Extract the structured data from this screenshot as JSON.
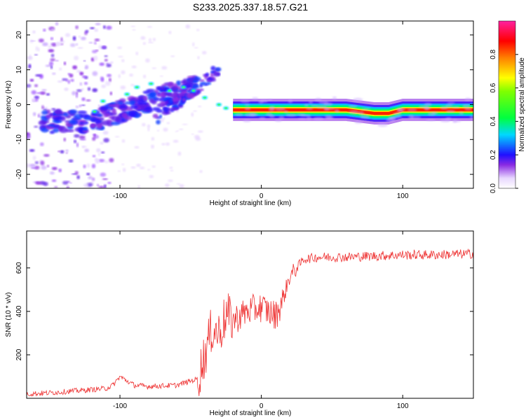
{
  "title": "S233.2025.337.18.57.G21",
  "chart_data": [
    {
      "type": "heatmap",
      "ylabel": "Frequency (Hz)",
      "xlabel": "Height of straight line (km)",
      "xlim": [
        -166,
        150
      ],
      "ylim": [
        -24,
        24
      ],
      "x_ticks": [
        -100,
        0,
        100
      ],
      "y_ticks": [
        -20,
        -10,
        0,
        10,
        20
      ],
      "colorbar": {
        "label": "Normalized spectral amplitude",
        "ticks": [
          "0.0",
          "0.2",
          "0.4",
          "0.6",
          "0.8"
        ],
        "range": [
          0,
          1
        ]
      },
      "ridge": {
        "description_x": [
          -150,
          -120,
          -100,
          -80,
          -60,
          -45,
          -30,
          -20,
          -10,
          0,
          20,
          40,
          60,
          80,
          90,
          100,
          120,
          150
        ],
        "freq": [
          -5,
          -5,
          -2,
          3,
          6,
          5,
          0,
          -1.5,
          -1.5,
          -1.5,
          -1.5,
          -1.5,
          -1.5,
          -2.5,
          -2.5,
          -1.5,
          -1.5,
          -1.5
        ]
      }
    },
    {
      "type": "line",
      "ylabel": "SNR (10 * v/v)",
      "xlabel": "Height of straight line (km)",
      "xlim": [
        -166,
        150
      ],
      "ylim": [
        0,
        770
      ],
      "x_ticks": [
        -100,
        0,
        100
      ],
      "y_ticks": [
        200,
        400,
        600
      ],
      "series": [
        {
          "name": "SNR",
          "color": "#ee3333",
          "x": [
            -166,
            -150,
            -130,
            -110,
            -105,
            -100,
            -90,
            -80,
            -60,
            -45,
            -40,
            -35,
            -30,
            -25,
            -20,
            -10,
            0,
            10,
            15,
            20,
            25,
            30,
            40,
            60,
            80,
            100,
            120,
            150
          ],
          "y": [
            20,
            25,
            35,
            45,
            60,
            100,
            60,
            55,
            60,
            90,
            200,
            320,
            300,
            380,
            360,
            400,
            420,
            380,
            450,
            560,
            600,
            640,
            650,
            650,
            655,
            660,
            660,
            665
          ]
        }
      ]
    }
  ]
}
